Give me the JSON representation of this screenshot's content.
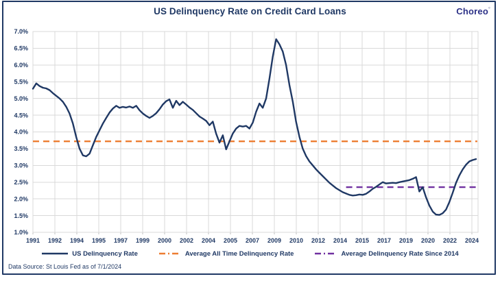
{
  "header": {
    "logo": "Choreo",
    "logo_mark": "°"
  },
  "footer": {
    "source": "Data Source: St Louis Fed as of 7/1/2024"
  },
  "colors": {
    "navy": "#1F3864",
    "orange": "#ED7D31",
    "purple": "#7030A0",
    "grid": "#D9D9D9",
    "tick": "#BFBFBF",
    "logo": "#2B3087",
    "border": "#1F3864"
  },
  "chart_data": {
    "type": "line",
    "title": "US Delinquency Rate on Credit Card Loans",
    "xlabel": "",
    "ylabel": "",
    "ylim": [
      1.0,
      7.0
    ],
    "ytick_step": 0.5,
    "grid": true,
    "legend_position": "bottom",
    "y_tick_labels": [
      "7.0%",
      "6.5%",
      "6.0%",
      "5.5%",
      "5.0%",
      "4.5%",
      "4.0%",
      "3.5%",
      "3.0%",
      "2.5%",
      "2.0%",
      "1.5%",
      "1.0%"
    ],
    "x_tick_labels": [
      "1991",
      "1992",
      "1994",
      "1995",
      "1997",
      "1999",
      "2000",
      "2002",
      "2004",
      "2005",
      "2007",
      "2009",
      "2010",
      "2012",
      "2014",
      "2015",
      "2017",
      "2019",
      "2020",
      "2022",
      "2024"
    ],
    "series": [
      {
        "name": "US Delinquency Rate",
        "style": "solid",
        "color": "#1F3864",
        "frequency": "quarterly",
        "start_year": 1991,
        "end_year": 2024.25,
        "values": [
          5.29,
          5.45,
          5.37,
          5.32,
          5.3,
          5.25,
          5.16,
          5.08,
          5.0,
          4.9,
          4.75,
          4.55,
          4.25,
          3.85,
          3.5,
          3.3,
          3.27,
          3.35,
          3.6,
          3.85,
          4.05,
          4.25,
          4.42,
          4.58,
          4.7,
          4.78,
          4.72,
          4.75,
          4.73,
          4.76,
          4.72,
          4.78,
          4.65,
          4.55,
          4.48,
          4.42,
          4.48,
          4.56,
          4.68,
          4.82,
          4.92,
          4.97,
          4.72,
          4.93,
          4.8,
          4.9,
          4.82,
          4.73,
          4.66,
          4.56,
          4.46,
          4.4,
          4.33,
          4.2,
          4.31,
          3.95,
          3.68,
          3.9,
          3.48,
          3.72,
          3.95,
          4.1,
          4.18,
          4.16,
          4.18,
          4.1,
          4.28,
          4.6,
          4.85,
          4.72,
          5.0,
          5.6,
          6.25,
          6.77,
          6.62,
          6.4,
          6.0,
          5.4,
          4.9,
          4.3,
          3.85,
          3.5,
          3.28,
          3.12,
          3.0,
          2.88,
          2.78,
          2.68,
          2.58,
          2.48,
          2.4,
          2.32,
          2.26,
          2.2,
          2.16,
          2.12,
          2.1,
          2.11,
          2.13,
          2.12,
          2.15,
          2.22,
          2.3,
          2.36,
          2.43,
          2.5,
          2.46,
          2.47,
          2.48,
          2.47,
          2.5,
          2.52,
          2.54,
          2.56,
          2.6,
          2.65,
          2.22,
          2.35,
          2.05,
          1.8,
          1.62,
          1.53,
          1.52,
          1.57,
          1.68,
          1.9,
          2.18,
          2.48,
          2.7,
          2.88,
          3.02,
          3.12,
          3.16,
          3.19
        ]
      },
      {
        "name": "Average All Time Delinquency Rate",
        "style": "dashed",
        "color": "#ED7D31",
        "type": "reference",
        "value": 3.72,
        "x_start": 1991.0,
        "x_end": 2024.35
      },
      {
        "name": "Average Delinquency Rate Since 2014",
        "style": "dashed",
        "color": "#7030A0",
        "type": "reference",
        "value": 2.35,
        "x_start": 2014.5,
        "x_end": 2024.35
      }
    ]
  }
}
